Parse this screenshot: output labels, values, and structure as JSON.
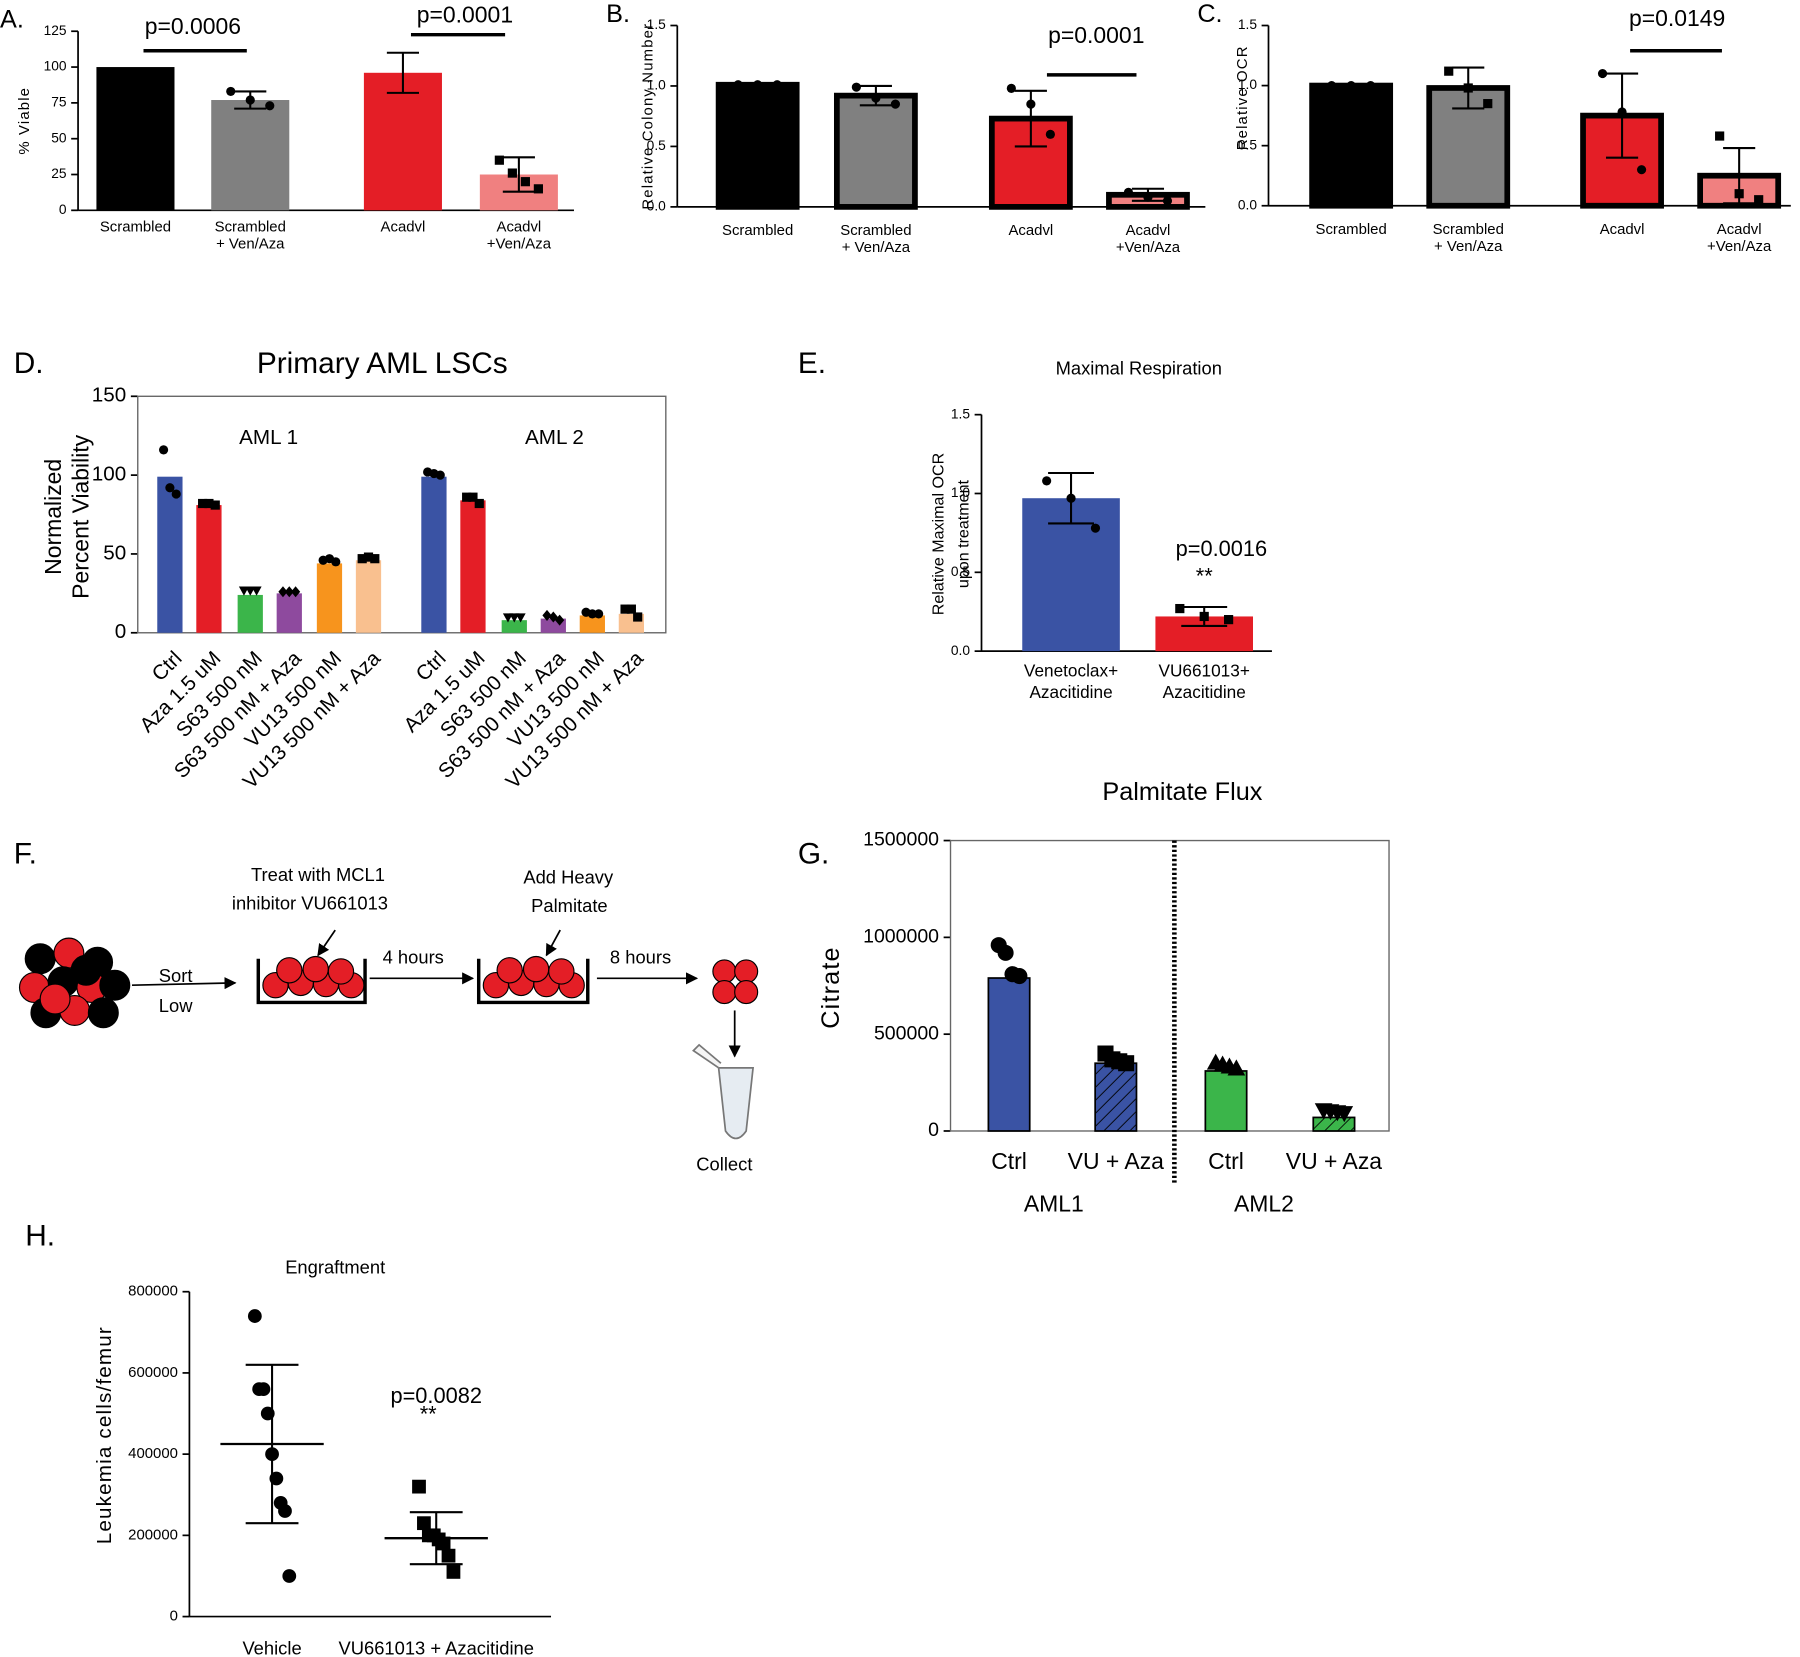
{
  "chart_data": [
    {
      "type": "bar",
      "label": "A.",
      "ylabel": "% Viable",
      "categories": [
        [
          "Scrambled"
        ],
        [
          "Scrambled",
          "+ Ven/Aza"
        ],
        [
          "Acadvl"
        ],
        [
          "Acadvl",
          "+Ven/Aza"
        ]
      ],
      "values": [
        100,
        77,
        96,
        25
      ],
      "errors": [
        null,
        6,
        14,
        12
      ],
      "points": [
        [],
        [
          83,
          77,
          73
        ],
        [],
        [
          35,
          26,
          20,
          15
        ]
      ],
      "markers": [
        "circle",
        "circle",
        "circle",
        "square"
      ],
      "colors": [
        "#000000",
        "#808080",
        "#e41e26",
        "#f08080"
      ],
      "outline": false,
      "ylim": [
        0,
        125
      ],
      "yticks": [
        0,
        25,
        50,
        75,
        100,
        125
      ],
      "annotations": [
        "p=0.0006",
        "p=0.0001"
      ]
    },
    {
      "type": "bar",
      "label": "B.",
      "ylabel": "Relative Colony Number",
      "categories": [
        [
          "Scrambled"
        ],
        [
          "Scrambled",
          "+ Ven/Aza"
        ],
        [
          "Acadvl"
        ],
        [
          "Acadvl",
          "+Ven/Aza"
        ]
      ],
      "values": [
        1.01,
        0.92,
        0.73,
        0.1
      ],
      "errors": [
        null,
        0.08,
        0.23,
        0.05
      ],
      "points": [
        [
          1.01,
          1.01,
          1.01
        ],
        [
          0.99,
          0.9,
          0.85
        ],
        [
          0.98,
          0.85,
          0.6
        ],
        [
          0.12,
          0.08,
          0.05
        ]
      ],
      "markers": [
        "circle",
        "circle",
        "circle",
        "circle"
      ],
      "colors": [
        "#000000",
        "#808080",
        "#e41e26",
        "#f08080"
      ],
      "outline": true,
      "ylim": [
        0,
        1.5
      ],
      "yticks": [
        {
          "value": 0,
          "label": "0.0"
        },
        {
          "value": 0.5,
          "label": "0.5"
        },
        {
          "value": 1,
          "label": "1.0"
        },
        {
          "value": 1.5,
          "label": "1.5"
        }
      ],
      "annotations": [
        "p=0.0001"
      ]
    },
    {
      "type": "bar",
      "label": "C.",
      "ylabel": "Relative OCR",
      "categories": [
        [
          "Scrambled"
        ],
        [
          "Scrambled",
          "+ Ven/Aza"
        ],
        [
          "Acadvl"
        ],
        [
          "Acadvl",
          "+Ven/Aza"
        ]
      ],
      "values": [
        1.0,
        0.98,
        0.75,
        0.25
      ],
      "errors": [
        null,
        0.17,
        0.35,
        0.23
      ],
      "points": [
        [
          1.0,
          1.0,
          1.0
        ],
        [
          1.12,
          0.98,
          0.85
        ],
        [
          1.1,
          0.78,
          0.3
        ],
        [
          0.58,
          0.1,
          0.05
        ]
      ],
      "markers": [
        "circle",
        "square",
        "circle",
        "square"
      ],
      "colors": [
        "#000000",
        "#808080",
        "#e41e26",
        "#f08080"
      ],
      "outline": true,
      "ylim": [
        0,
        1.5
      ],
      "yticks": [
        {
          "value": 0,
          "label": "0.0"
        },
        {
          "value": 0.5,
          "label": "0.5"
        },
        {
          "value": 1,
          "label": "1.0"
        },
        {
          "value": 1.5,
          "label": "1.5"
        }
      ],
      "annotations": [
        "p=0.0149"
      ]
    },
    {
      "type": "bar",
      "label": "D.",
      "title": "Primary AML LSCs",
      "ylabel": [
        "Normalized",
        "Percent Viability"
      ],
      "categories": [
        [
          "Ctrl"
        ],
        [
          "Aza 1.5 uM"
        ],
        [
          "S63 500 nM"
        ],
        [
          "S63 500 nM + Aza"
        ],
        [
          "VU13 500 nM"
        ],
        [
          "VU13 500 nM + Aza"
        ],
        [
          "Ctrl"
        ],
        [
          "Aza 1.5 uM"
        ],
        [
          "S63 500 nM"
        ],
        [
          "S63 500 nM + Aza"
        ],
        [
          "VU13 500 nM"
        ],
        [
          "VU13 500 nM + Aza"
        ]
      ],
      "values": [
        99,
        81,
        24,
        25,
        44,
        46,
        99,
        84,
        8,
        9,
        11,
        12
      ],
      "points": [
        [
          116,
          92,
          88
        ],
        [
          82,
          82,
          81
        ],
        [
          27,
          27,
          27
        ],
        [
          26,
          26,
          26
        ],
        [
          46,
          47,
          45
        ],
        [
          47,
          48,
          47
        ],
        [
          102,
          101,
          100
        ],
        [
          86,
          86,
          82
        ],
        [
          10,
          10,
          10
        ],
        [
          11,
          10,
          8
        ],
        [
          13,
          12,
          12
        ],
        [
          15,
          15,
          10
        ]
      ],
      "markers": [
        "circle",
        "square",
        "invtriangle",
        "diamond",
        "circle",
        "square",
        "circle",
        "square",
        "invtriangle",
        "diamond",
        "circle",
        "square"
      ],
      "colors": [
        "#3a53a4",
        "#e41e26",
        "#3bb54a",
        "#8e4a9e",
        "#f7941d",
        "#f9c08f",
        "#3a53a4",
        "#e41e26",
        "#3bb54a",
        "#8e4a9e",
        "#f7941d",
        "#f9c08f"
      ],
      "outline": false,
      "groups": [
        "AML 1",
        "AML 2"
      ],
      "ylim": [
        0,
        150
      ],
      "yticks": [
        0,
        50,
        100,
        150
      ]
    },
    {
      "type": "bar",
      "label": "E.",
      "title": "Maximal Respiration",
      "ylabel": [
        "Relative Maximal OCR",
        "upon treatment"
      ],
      "categories": [
        [
          "Venetoclax+",
          "Azacitidine"
        ],
        [
          "VU661013+",
          "Azacitidine"
        ]
      ],
      "values": [
        0.97,
        0.22
      ],
      "errors": [
        0.16,
        0.06
      ],
      "points": [
        [
          1.08,
          0.97,
          0.78
        ],
        [
          0.27,
          0.22,
          0.2
        ]
      ],
      "markers": [
        "circle",
        "square"
      ],
      "colors": [
        "#3a53a4",
        "#e41e26"
      ],
      "outline": false,
      "ylim": [
        0,
        1.5
      ],
      "yticks": [
        {
          "value": 0,
          "label": "0.0"
        },
        {
          "value": 0.5,
          "label": "0.5"
        },
        {
          "value": 1,
          "label": "1.0"
        },
        {
          "value": 1.5,
          "label": "1.5"
        }
      ],
      "annotations": [
        "p=0.0016",
        "**"
      ]
    },
    {
      "type": "bar",
      "label": "G.",
      "title": "Palmitate Flux",
      "ylabel": "Citrate",
      "categories": [
        [
          "Ctrl"
        ],
        [
          "VU + Aza"
        ],
        [
          "Ctrl"
        ],
        [
          "VU + Aza"
        ]
      ],
      "values": [
        790000,
        350000,
        310000,
        70000
      ],
      "points": [
        [
          960000,
          920000,
          810000,
          800000
        ],
        [
          400000,
          370000,
          360000,
          350000
        ],
        [
          350000,
          340000,
          330000,
          320000
        ],
        [
          110000,
          105000,
          100000,
          95000
        ]
      ],
      "markers": [
        "circle",
        "square",
        "triangle",
        "invtriangle"
      ],
      "colors": [
        "#3a53a4",
        "#3a53a4",
        "#3bb54a",
        "#3bb54a"
      ],
      "hatch": [
        false,
        true,
        false,
        true
      ],
      "outline": true,
      "groups": [
        "AML1",
        "AML2"
      ],
      "divider": true,
      "ylim": [
        0,
        1500000
      ],
      "yticks": [
        0,
        500000,
        1000000,
        1500000
      ]
    },
    {
      "type": "dot",
      "label": "H.",
      "title": "Engraftment",
      "ylabel": "Leukemia cells/femur",
      "categories": [
        [
          "Vehicle"
        ],
        [
          "VU661013 + Azacitidine"
        ]
      ],
      "points": [
        [
          740000,
          560000,
          560000,
          500000,
          400000,
          340000,
          280000,
          260000,
          100000
        ],
        [
          320000,
          230000,
          200000,
          200000,
          190000,
          180000,
          150000,
          110000
        ]
      ],
      "markers": [
        "circle",
        "square"
      ],
      "means": [
        425000,
        193000
      ],
      "sd": [
        195000,
        64000
      ],
      "ylim": [
        0,
        800000
      ],
      "yticks": [
        0,
        200000,
        400000,
        600000,
        800000
      ],
      "annotations": [
        "p=0.0082",
        "**"
      ]
    }
  ],
  "panel_f": {
    "label": "F.",
    "step1": [
      "Treat with MCL1",
      "inhibitor VU661013"
    ],
    "time1": "4 hours",
    "step2": [
      "Add Heavy",
      "Palmitate"
    ],
    "time2": "8 hours",
    "sort": [
      "Sort",
      "Low"
    ],
    "collect": "Collect"
  }
}
